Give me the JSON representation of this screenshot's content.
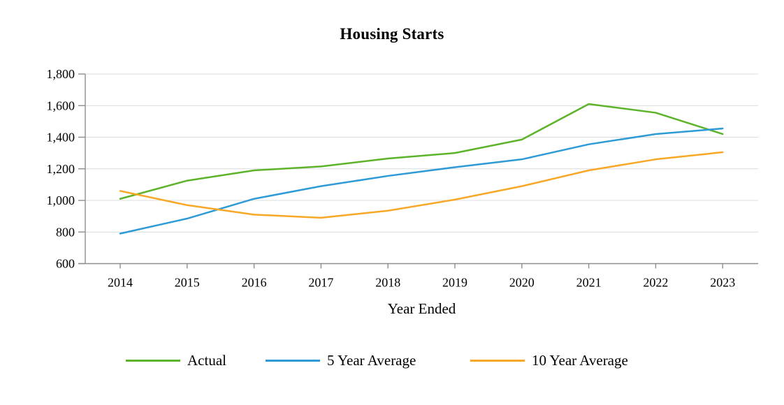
{
  "chart_data": {
    "type": "line",
    "title": "Housing Starts",
    "xlabel": "Year Ended",
    "ylabel": "",
    "categories": [
      "2014",
      "2015",
      "2016",
      "2017",
      "2018",
      "2019",
      "2020",
      "2021",
      "2022",
      "2023"
    ],
    "series": [
      {
        "name": "Actual",
        "color": "#5db32a",
        "values": [
          1010,
          1125,
          1190,
          1215,
          1265,
          1300,
          1385,
          1610,
          1555,
          1420
        ]
      },
      {
        "name": "5 Year Average",
        "color": "#2e9bd6",
        "values": [
          790,
          885,
          1010,
          1090,
          1155,
          1210,
          1260,
          1355,
          1420,
          1455
        ]
      },
      {
        "name": "10 Year Average",
        "color": "#f7a827",
        "values": [
          1060,
          970,
          910,
          890,
          935,
          1005,
          1090,
          1190,
          1260,
          1305
        ]
      }
    ],
    "ylim": [
      600,
      1800
    ],
    "yticks": [
      600,
      800,
      1000,
      1200,
      1400,
      1600,
      1800
    ],
    "grid": "horizontal",
    "legend_position": "bottom",
    "axis_color": "#8e8e8e",
    "gridline_color": "#dcdcdc",
    "text_color": "#000000"
  }
}
